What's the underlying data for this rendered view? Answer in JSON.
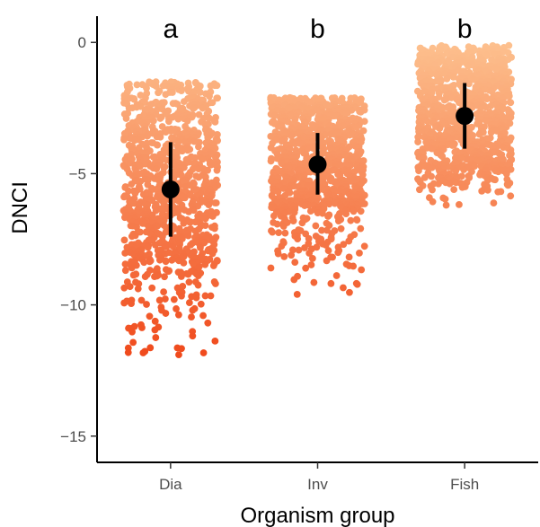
{
  "chart_data": {
    "type": "scatter",
    "xlabel": "Organism group",
    "ylabel": "DNCI",
    "ylim": [
      -16,
      1
    ],
    "yticks": [
      0,
      -5,
      -10,
      -15
    ],
    "ytick_labels": [
      "0",
      "−5",
      "−10",
      "−15"
    ],
    "grid": false,
    "legend": "none",
    "colors": {
      "high": "#fdc08e",
      "low": "#f04a1c",
      "summary": "#000000"
    },
    "groups": [
      {
        "category": "Dia",
        "letter": "a",
        "mean": -5.6,
        "lower": -7.4,
        "upper": -3.8,
        "min": -11.9,
        "max": -1.5
      },
      {
        "category": "Inv",
        "letter": "b",
        "mean": -4.65,
        "lower": -5.8,
        "upper": -3.45,
        "min": -9.6,
        "max": -2.1
      },
      {
        "category": "Fish",
        "letter": "b",
        "mean": -2.8,
        "lower": -4.05,
        "upper": -1.55,
        "min": -6.2,
        "max": -0.1
      }
    ]
  }
}
